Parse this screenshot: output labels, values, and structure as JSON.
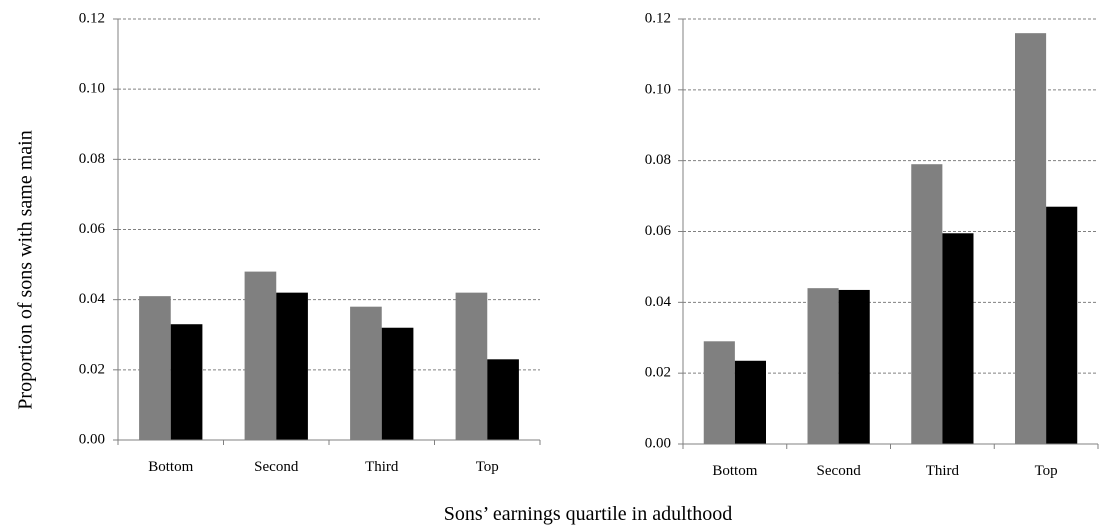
{
  "figure": {
    "ylabel": "Proportion of sons with same main",
    "xlabel": "Sons’ earnings quartile in adulthood"
  },
  "colors": {
    "series_1": "#808080",
    "series_2": "#000000",
    "gridline": "#808080",
    "axis": "#808080"
  },
  "chart_data": [
    {
      "type": "bar",
      "categories": [
        "Bottom",
        "Second",
        "Third",
        "Top"
      ],
      "series": [
        {
          "values": [
            0.041,
            0.048,
            0.038,
            0.042
          ]
        },
        {
          "values": [
            0.033,
            0.042,
            0.032,
            0.023
          ]
        }
      ],
      "ylim": [
        0,
        0.12
      ],
      "yticks": [
        "0.00",
        "0.02",
        "0.04",
        "0.06",
        "0.08",
        "0.10",
        "0.12"
      ],
      "grid": true
    },
    {
      "type": "bar",
      "categories": [
        "Bottom",
        "Second",
        "Third",
        "Top"
      ],
      "series": [
        {
          "values": [
            0.029,
            0.044,
            0.079,
            0.116
          ]
        },
        {
          "values": [
            0.0235,
            0.0435,
            0.0595,
            0.067
          ]
        }
      ],
      "ylim": [
        0,
        0.12
      ],
      "yticks": [
        "0.00",
        "0.02",
        "0.04",
        "0.06",
        "0.08",
        "0.10",
        "0.12"
      ],
      "grid": true
    }
  ]
}
